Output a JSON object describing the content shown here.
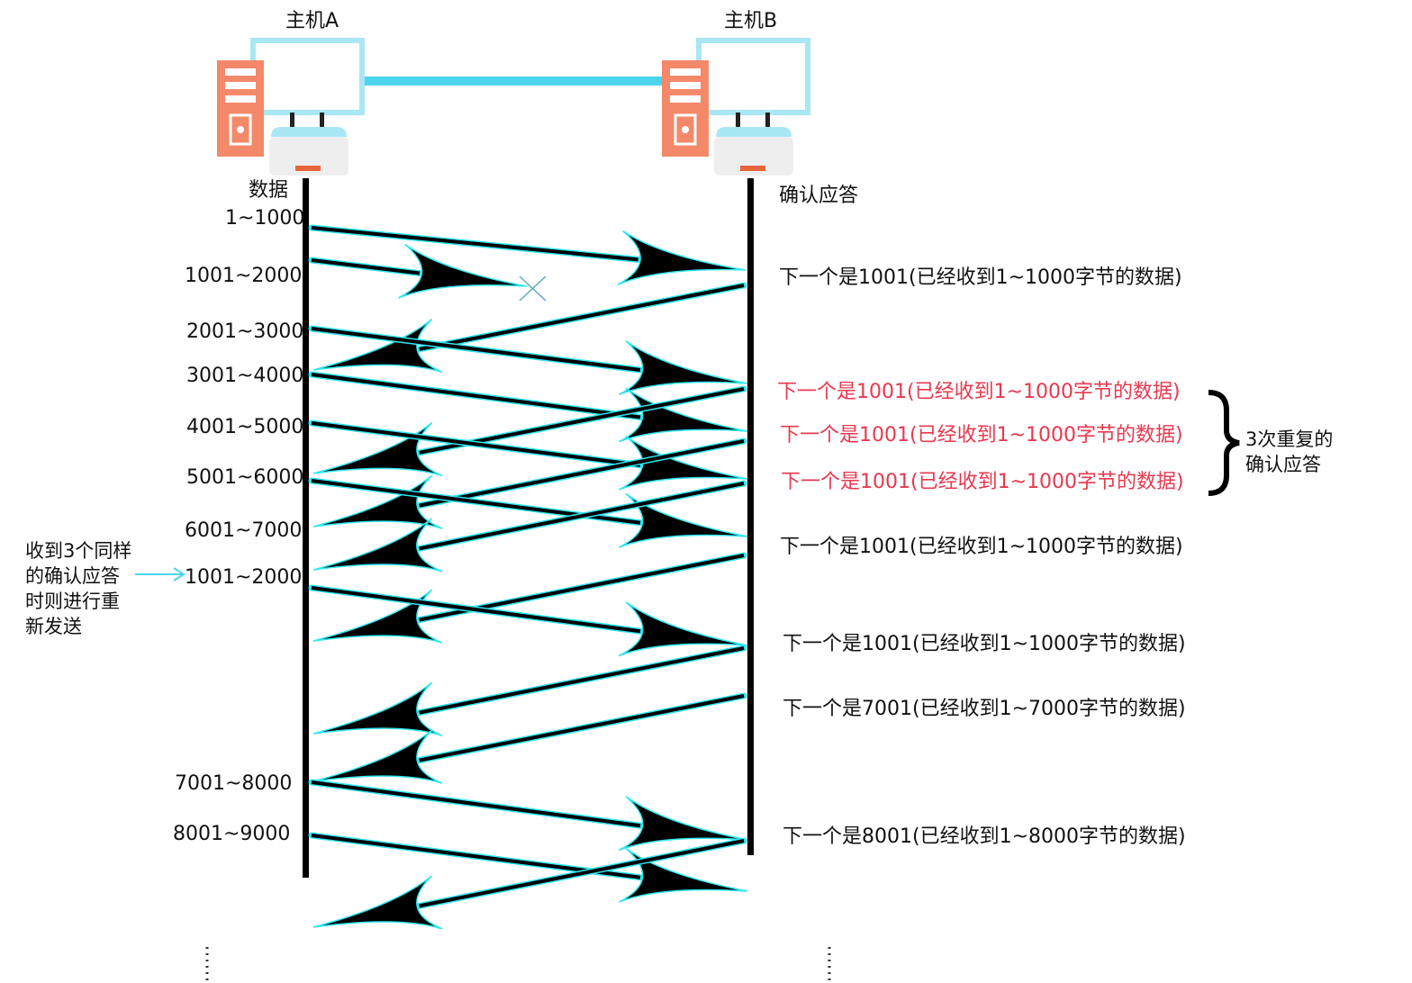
{
  "hosts": {
    "host_a": "主机A",
    "host_b": "主机B"
  },
  "column_headers": {
    "sender": "数据",
    "receiver": "确认应答"
  },
  "segments": [
    "1~1000",
    "1001~2000",
    "2001~3000",
    "3001~4000",
    "4001~5000",
    "5001~6000",
    "6001~7000",
    "1001~2000",
    "7001~8000",
    "8001~9000"
  ],
  "acks": [
    "下一个是1001(已经收到1~1000字节的数据)",
    "下一个是1001(已经收到1~1000字节的数据)",
    "下一个是1001(已经收到1~1000字节的数据)",
    "下一个是1001(已经收到1~1000字节的数据)",
    "下一个是1001(已经收到1~1000字节的数据)",
    "下一个是1001(已经收到1~1000字节的数据)",
    "下一个是7001(已经收到1~7000字节的数据)",
    "下一个是8001(已经收到1~8000字节的数据)"
  ],
  "brace_note": "3次重复的\n确认应答",
  "retransmit_note": "收到3个同样\n的确认应答\n时则进行重\n新发送",
  "colors": {
    "duplicate_ack": "#e8384f",
    "link": "#4dd4ee",
    "monitor": "#a9e7f5",
    "tower": "#f4896a",
    "arrow_outline": "#2ee6f0"
  }
}
